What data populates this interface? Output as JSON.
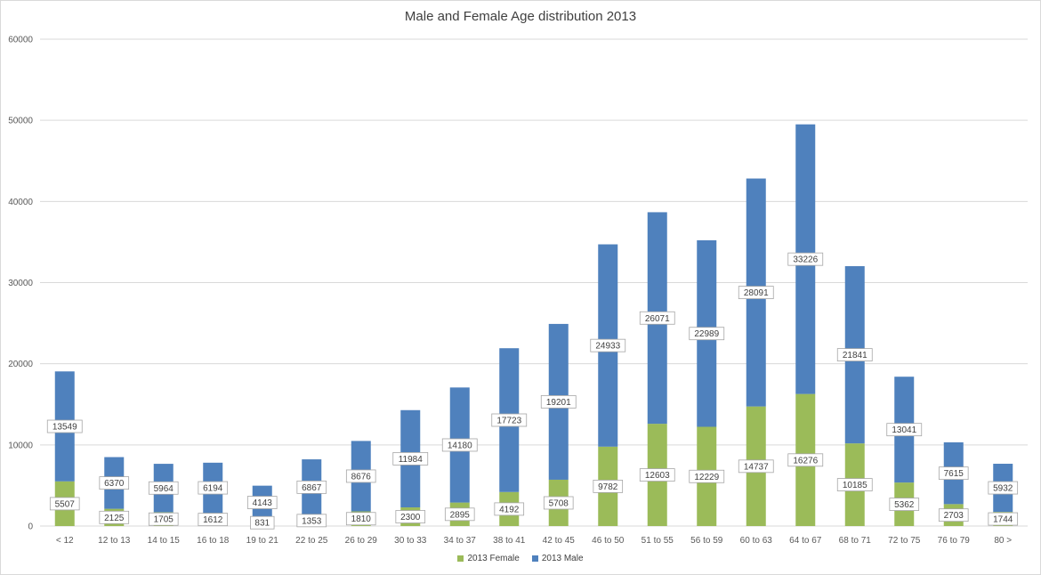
{
  "chart_data": {
    "type": "bar",
    "stacked": true,
    "title": "Male and Female Age distribution 2013",
    "xlabel": "",
    "ylabel": "",
    "ylim": [
      0,
      60000
    ],
    "yticks": [
      0,
      10000,
      20000,
      30000,
      40000,
      50000,
      60000
    ],
    "grid": true,
    "legend_position": "bottom",
    "categories": [
      "< 12",
      "12 to 13",
      "14 to 15",
      "16 to 18",
      "19 to 21",
      "22 to 25",
      "26 to 29",
      "30 to 33",
      "34 to 37",
      "38 to 41",
      "42 to 45",
      "46 to 50",
      "51 to 55",
      "56 to 59",
      "60 to 63",
      "64 to 67",
      "68 to 71",
      "72 to 75",
      "76 to 79",
      "80 >"
    ],
    "series": [
      {
        "name": "2013 Female",
        "color": "#9bbb59",
        "values": [
          5507,
          2125,
          1705,
          1612,
          831,
          1353,
          1810,
          2300,
          2895,
          4192,
          5708,
          9782,
          12603,
          12229,
          14737,
          16276,
          10185,
          5362,
          2703,
          1744
        ]
      },
      {
        "name": "2013 Male",
        "color": "#4f81bd",
        "values": [
          13549,
          6370,
          5964,
          6194,
          4143,
          6867,
          8676,
          11984,
          14180,
          17723,
          19201,
          24933,
          26071,
          22989,
          28091,
          33226,
          21841,
          13041,
          7615,
          5932
        ]
      }
    ]
  }
}
